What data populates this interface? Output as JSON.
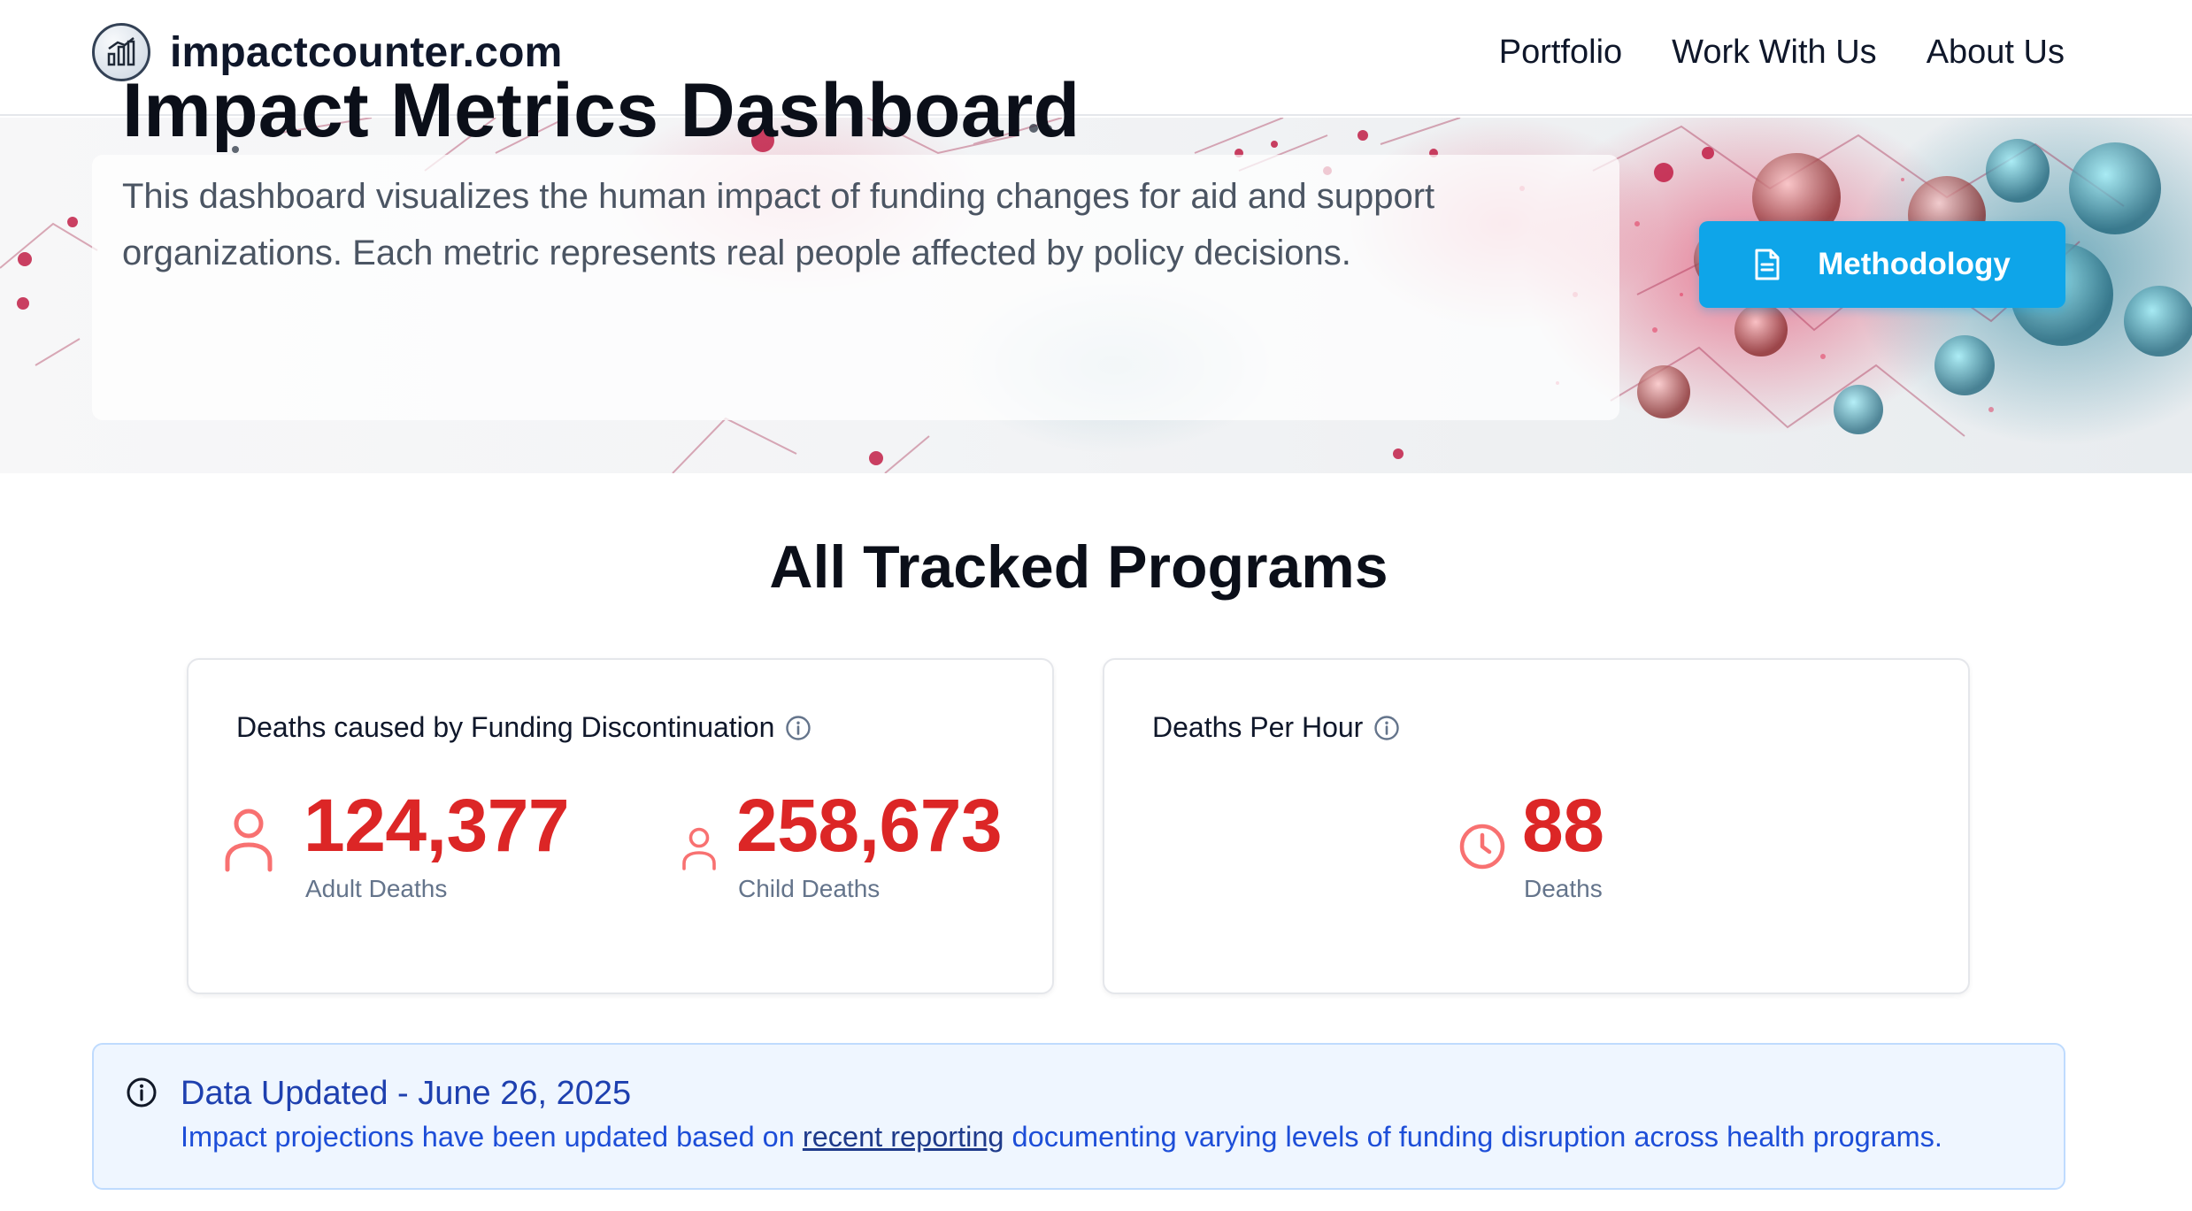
{
  "nav": {
    "brand": "impactcounter.com",
    "links": [
      "Portfolio",
      "Work With Us",
      "About Us"
    ]
  },
  "hero": {
    "title": "Impact Metrics Dashboard",
    "description": "This dashboard visualizes the human impact of funding changes for aid and support organizations. Each metric represents real people affected by policy decisions.",
    "methodology_button": "Methodology"
  },
  "section": {
    "title": "All Tracked Programs"
  },
  "cards": {
    "funding": {
      "title": "Deaths caused by Funding Discontinuation",
      "adult": {
        "value": "124,377",
        "label": "Adult Deaths"
      },
      "child": {
        "value": "258,673",
        "label": "Child Deaths"
      }
    },
    "hourly": {
      "title": "Deaths Per Hour",
      "deaths": {
        "value": "88",
        "label": "Deaths"
      }
    }
  },
  "banner": {
    "title": "Data Updated - June 26, 2025",
    "text_before": "Impact projections have been updated based on ",
    "link_text": "recent reporting",
    "text_after": " documenting varying levels of funding disruption across health programs."
  },
  "colors": {
    "accent": "#0ea5e9",
    "metric": "#dc2626",
    "metric_icon": "#f87171",
    "banner_bg": "#eff6ff",
    "banner_text": "#1e40af"
  },
  "icons": {
    "logo": "chart-logo-icon",
    "methodology": "document-icon",
    "info": "info-circle-icon",
    "adult": "person-icon",
    "child": "person-small-icon",
    "clock": "clock-icon"
  }
}
